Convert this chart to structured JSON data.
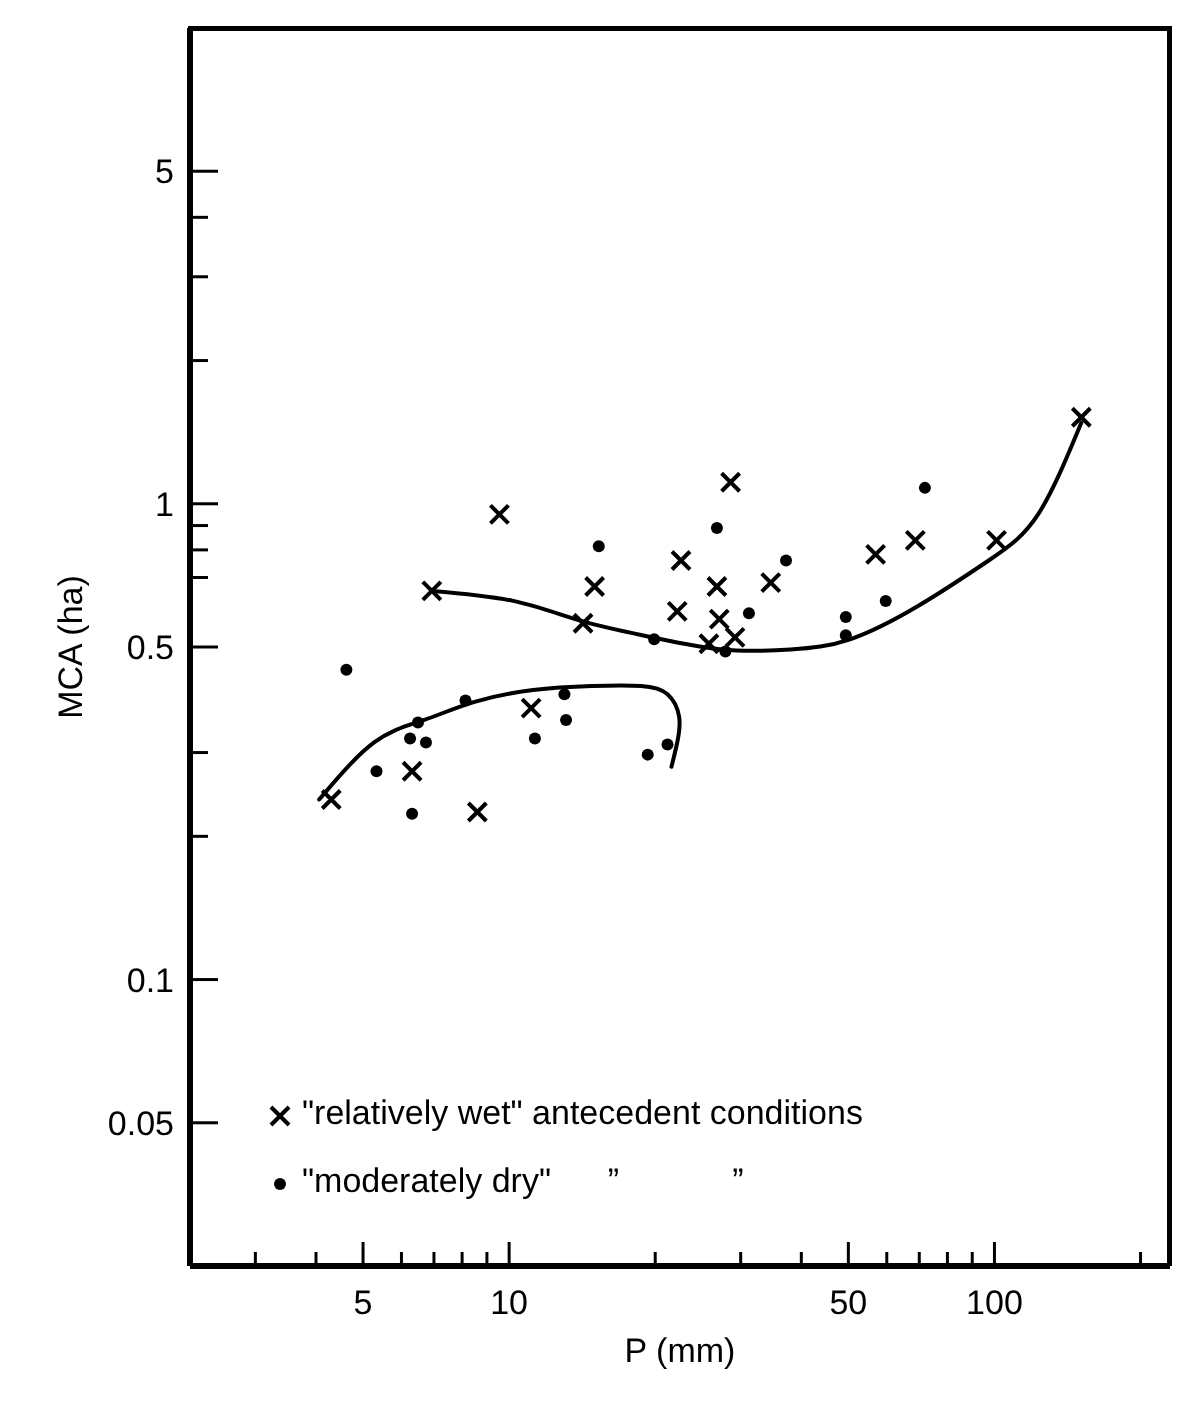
{
  "chart_data": {
    "type": "scatter",
    "xlabel": "P (mm)",
    "ylabel": "MCA (ha)",
    "log": "xy",
    "xlim": [
      2.2,
      230
    ],
    "ylim": [
      0.025,
      10
    ],
    "xticks": [
      {
        "value": 3,
        "label": null
      },
      {
        "value": 4,
        "label": null
      },
      5,
      {
        "value": 6,
        "label": null
      },
      {
        "value": 7,
        "label": null
      },
      {
        "value": 8,
        "label": null
      },
      {
        "value": 9,
        "label": null
      },
      10,
      {
        "value": 20,
        "label": null
      },
      {
        "value": 30,
        "label": null
      },
      {
        "value": 40,
        "label": null
      },
      50,
      {
        "value": 60,
        "label": null
      },
      {
        "value": 70,
        "label": null
      },
      {
        "value": 80,
        "label": null
      },
      {
        "value": 90,
        "label": null
      },
      100,
      {
        "value": 200,
        "label": null
      }
    ],
    "yticks": [
      0.05,
      0.1,
      {
        "value": 0.2,
        "label": null
      },
      {
        "value": 0.3,
        "label": null
      },
      0.5,
      {
        "value": 0.7,
        "label": null
      },
      {
        "value": 0.8,
        "label": null
      },
      {
        "value": 0.9,
        "label": null
      },
      1,
      {
        "value": 2,
        "label": null
      },
      {
        "value": 3,
        "label": null
      },
      {
        "value": 4,
        "label": null
      },
      5
    ],
    "legend": "bottom left",
    "grid": false,
    "series": [
      {
        "name": "\"relatively wet\" antecedent conditions",
        "marker": "cross",
        "color": "#000000",
        "x": [
          4.3,
          6.93,
          9.55,
          6.31,
          8.6,
          11.1,
          14.2,
          15.0,
          22.6,
          22.2,
          28.6,
          26.8,
          27.1,
          25.8,
          29.2,
          34.6,
          56.9,
          68.7,
          101,
          151
        ],
        "values": [
          0.239,
          0.656,
          0.95,
          0.274,
          0.225,
          0.372,
          0.561,
          0.67,
          0.76,
          0.594,
          1.11,
          0.67,
          0.572,
          0.508,
          0.524,
          0.683,
          0.783,
          0.838,
          0.838,
          1.52
        ]
      },
      {
        "name": "\"moderately dry\"      ”            ”",
        "marker": "circle",
        "color": "#000000",
        "x": [
          4.62,
          5.33,
          6.25,
          6.74,
          6.49,
          6.31,
          8.13,
          11.3,
          13.0,
          13.1,
          15.3,
          19.3,
          21.2,
          19.9,
          26.8,
          31.2,
          27.9,
          37.2,
          49.4,
          49.4,
          59.7,
          71.9
        ],
        "values": [
          0.448,
          0.274,
          0.321,
          0.315,
          0.347,
          0.223,
          0.386,
          0.321,
          0.398,
          0.351,
          0.814,
          0.297,
          0.312,
          0.519,
          0.889,
          0.589,
          0.489,
          0.76,
          0.578,
          0.529,
          0.625,
          1.08
        ]
      },
      {
        "type": "line",
        "marker": "none",
        "line_style": "solid",
        "color": "#000000",
        "x": [
          4.06,
          5.27,
          6.67,
          8.45,
          11.2,
          14.8,
          18.7,
          21.2,
          22.4,
          22.2,
          21.6
        ],
        "values": [
          0.239,
          0.315,
          0.351,
          0.383,
          0.406,
          0.414,
          0.414,
          0.398,
          0.357,
          0.315,
          0.28
        ]
      },
      {
        "type": "line",
        "marker": "none",
        "line_style": "solid",
        "color": "#000000",
        "x": [
          6.93,
          10.2,
          14.2,
          19.7,
          27.4,
          38.0,
          50.4,
          70,
          97.3,
          123,
          151
        ],
        "values": [
          0.656,
          0.625,
          0.566,
          0.524,
          0.494,
          0.494,
          0.519,
          0.612,
          0.76,
          0.95,
          1.48
        ]
      }
    ]
  }
}
